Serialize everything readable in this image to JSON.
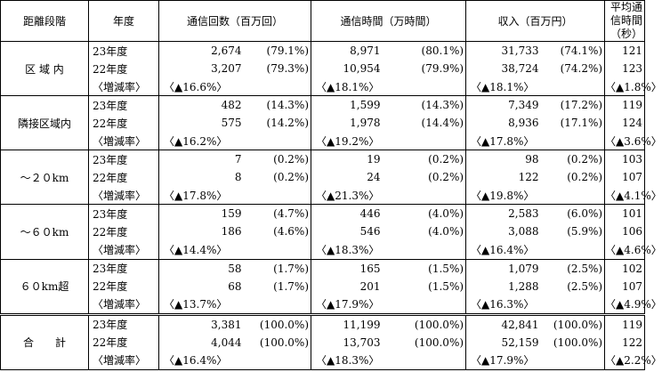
{
  "header": {
    "distance": "距離段階",
    "year": "年度",
    "calls": "通信回数（百万回）",
    "time": "通信時間（万時間）",
    "revenue": "収入（百万円）",
    "avg": "平均通信時間（秒）"
  },
  "groups": [
    {
      "label": "区 域 内",
      "rows": [
        {
          "year": "23年度",
          "calls": "2,674",
          "calls_pct": "(79.1%)",
          "time": "8,971",
          "time_pct": "(80.1%)",
          "rev": "31,733",
          "rev_pct": "(74.1%)",
          "avg": "121"
        },
        {
          "year": "22年度",
          "calls": "3,207",
          "calls_pct": "(79.3%)",
          "time": "10,954",
          "time_pct": "(79.9%)",
          "rev": "38,724",
          "rev_pct": "(74.2%)",
          "avg": "123"
        }
      ],
      "change": {
        "label": "〈増減率〉",
        "calls": "〈▲16.6%〉",
        "time": "〈▲18.1%〉",
        "rev": "〈▲18.1%〉",
        "avg": "〈▲1.8%〉"
      }
    },
    {
      "label": "隣接区域内",
      "rows": [
        {
          "year": "23年度",
          "calls": "482",
          "calls_pct": "(14.3%)",
          "time": "1,599",
          "time_pct": "(14.3%)",
          "rev": "7,349",
          "rev_pct": "(17.2%)",
          "avg": "119"
        },
        {
          "year": "22年度",
          "calls": "575",
          "calls_pct": "(14.2%)",
          "time": "1,978",
          "time_pct": "(14.4%)",
          "rev": "8,936",
          "rev_pct": "(17.1%)",
          "avg": "124"
        }
      ],
      "change": {
        "label": "〈増減率〉",
        "calls": "〈▲16.2%〉",
        "time": "〈▲19.2%〉",
        "rev": "〈▲17.8%〉",
        "avg": "〈▲3.6%〉"
      }
    },
    {
      "label": "～２０km",
      "rows": [
        {
          "year": "23年度",
          "calls": "7",
          "calls_pct": "(0.2%)",
          "time": "19",
          "time_pct": "(0.2%)",
          "rev": "98",
          "rev_pct": "(0.2%)",
          "avg": "103"
        },
        {
          "year": "22年度",
          "calls": "8",
          "calls_pct": "(0.2%)",
          "time": "24",
          "time_pct": "(0.2%)",
          "rev": "122",
          "rev_pct": "(0.2%)",
          "avg": "107"
        }
      ],
      "change": {
        "label": "〈増減率〉",
        "calls": "〈▲17.8%〉",
        "time": "〈▲21.3%〉",
        "rev": "〈▲19.8%〉",
        "avg": "〈▲4.1%〉"
      }
    },
    {
      "label": "～６０km",
      "rows": [
        {
          "year": "23年度",
          "calls": "159",
          "calls_pct": "(4.7%)",
          "time": "446",
          "time_pct": "(4.0%)",
          "rev": "2,583",
          "rev_pct": "(6.0%)",
          "avg": "101"
        },
        {
          "year": "22年度",
          "calls": "186",
          "calls_pct": "(4.6%)",
          "time": "546",
          "time_pct": "(4.0%)",
          "rev": "3,088",
          "rev_pct": "(5.9%)",
          "avg": "106"
        }
      ],
      "change": {
        "label": "〈増減率〉",
        "calls": "〈▲14.4%〉",
        "time": "〈▲18.3%〉",
        "rev": "〈▲16.4%〉",
        "avg": "〈▲4.6%〉"
      }
    },
    {
      "label": "６０km超",
      "rows": [
        {
          "year": "23年度",
          "calls": "58",
          "calls_pct": "(1.7%)",
          "time": "165",
          "time_pct": "(1.5%)",
          "rev": "1,079",
          "rev_pct": "(2.5%)",
          "avg": "102"
        },
        {
          "year": "22年度",
          "calls": "68",
          "calls_pct": "(1.7%)",
          "time": "201",
          "time_pct": "(1.5%)",
          "rev": "1,288",
          "rev_pct": "(2.5%)",
          "avg": "107"
        }
      ],
      "change": {
        "label": "〈増減率〉",
        "calls": "〈▲13.7%〉",
        "time": "〈▲17.9%〉",
        "rev": "〈▲16.3%〉",
        "avg": "〈▲4.9%〉"
      }
    },
    {
      "label": "合　　計",
      "rows": [
        {
          "year": "23年度",
          "calls": "3,381",
          "calls_pct": "(100.0%)",
          "time": "11,199",
          "time_pct": "(100.0%)",
          "rev": "42,841",
          "rev_pct": "(100.0%)",
          "avg": "119"
        },
        {
          "year": "22年度",
          "calls": "4,044",
          "calls_pct": "(100.0%)",
          "time": "13,703",
          "time_pct": "(100.0%)",
          "rev": "52,159",
          "rev_pct": "(100.0%)",
          "avg": "122"
        }
      ],
      "change": {
        "label": "〈増減率〉",
        "calls": "〈▲16.4%〉",
        "time": "〈▲18.3%〉",
        "rev": "〈▲17.9%〉",
        "avg": "〈▲2.2%〉"
      }
    }
  ]
}
